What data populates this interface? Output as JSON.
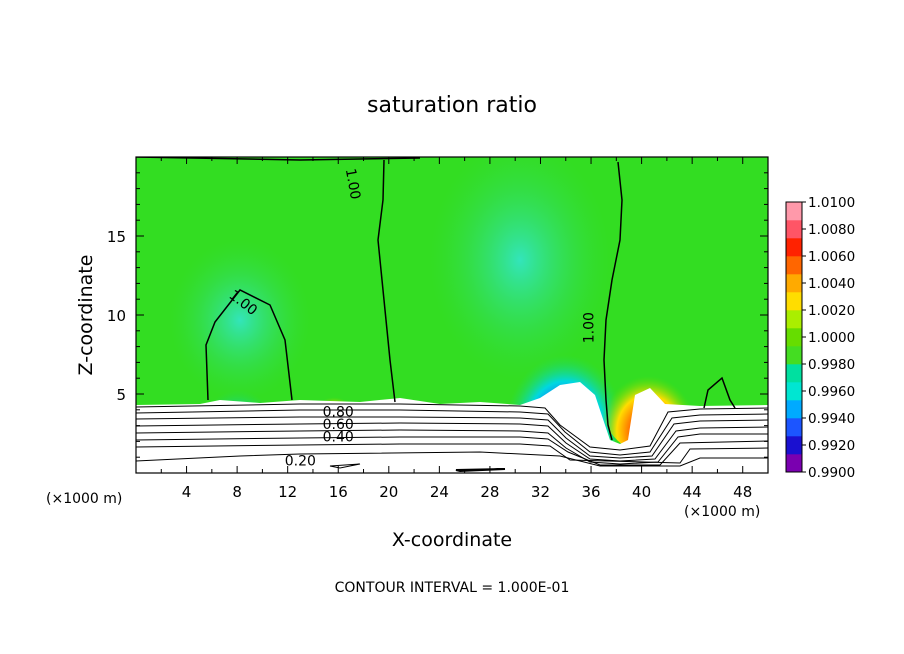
{
  "chart_data": {
    "type": "heatmap",
    "title": "saturation ratio",
    "xlabel": "X-coordinate",
    "ylabel": "Z-coordinate",
    "x_unit_left": "(×1000 m)",
    "x_unit_right": "(×1000 m)",
    "xlim": [
      0,
      50
    ],
    "ylim": [
      0,
      20
    ],
    "x_ticks": [
      4,
      8,
      12,
      16,
      20,
      24,
      28,
      32,
      36,
      40,
      44,
      48
    ],
    "y_ticks": [
      5,
      10,
      15
    ],
    "colorbar": {
      "min": 0.99,
      "max": 1.01,
      "labels": [
        "1.0100",
        "1.0080",
        "1.0060",
        "1.0040",
        "1.0020",
        "1.0000",
        "0.9980",
        "0.9960",
        "0.9940",
        "0.9920",
        "0.9900"
      ],
      "colors": [
        "#7a00b0",
        "#1a10d0",
        "#1c55ff",
        "#00aaff",
        "#00e6d2",
        "#00e0a0",
        "#44dd22",
        "#66dd00",
        "#aaee00",
        "#ffdd00",
        "#ffaa00",
        "#ff6600",
        "#ff2200",
        "#ff5566",
        "#ff99aa"
      ]
    },
    "contour_labels": [
      {
        "text": "1.00",
        "x": 17.2,
        "z": 18.3,
        "rot": 80
      },
      {
        "text": "1.00",
        "x": 8.5,
        "z": 10.8,
        "rot": 38
      },
      {
        "text": "1.00",
        "x": 35.8,
        "z": 9.2,
        "rot": -90
      },
      {
        "text": "0.80",
        "x": 16.0,
        "z": 3.9,
        "rot": 0
      },
      {
        "text": "0.60",
        "x": 16.0,
        "z": 3.1,
        "rot": 0
      },
      {
        "text": "0.40",
        "x": 16.0,
        "z": 2.3,
        "rot": 0
      },
      {
        "text": "0.20",
        "x": 13.0,
        "z": 0.8,
        "rot": 0
      }
    ],
    "footnote": "CONTOUR INTERVAL = 1.000E-01"
  }
}
